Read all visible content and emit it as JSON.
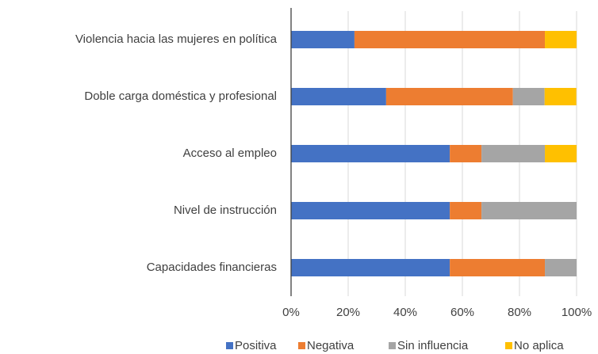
{
  "chart_data": {
    "type": "stacked-bar-horizontal",
    "categories": [
      "Violencia hacia las mujeres en política",
      "Doble carga doméstica y profesional",
      "Acceso al empleo",
      "Nivel de instrucción",
      "Capacidades financieras"
    ],
    "series": [
      {
        "name": "Positiva",
        "color": "#4472c4",
        "values": [
          22.2,
          33.3,
          55.6,
          55.6,
          55.6
        ]
      },
      {
        "name": "Negativa",
        "color": "#ed7d31",
        "values": [
          66.7,
          44.4,
          11.1,
          11.1,
          33.3
        ]
      },
      {
        "name": "Sin influencia",
        "color": "#a5a5a5",
        "values": [
          0,
          11.1,
          22.2,
          33.3,
          11.1
        ]
      },
      {
        "name": "No aplica",
        "color": "#ffc000",
        "values": [
          11.1,
          11.1,
          11.1,
          0,
          0
        ]
      }
    ],
    "xlim": [
      0,
      100
    ],
    "xticks": [
      {
        "value": 0,
        "label": "0%"
      },
      {
        "value": 20,
        "label": "20%"
      },
      {
        "value": 40,
        "label": "40%"
      },
      {
        "value": 60,
        "label": "60%"
      },
      {
        "value": 80,
        "label": "80%"
      },
      {
        "value": 100,
        "label": "100%"
      }
    ],
    "grid": true,
    "legend": "bottom"
  }
}
